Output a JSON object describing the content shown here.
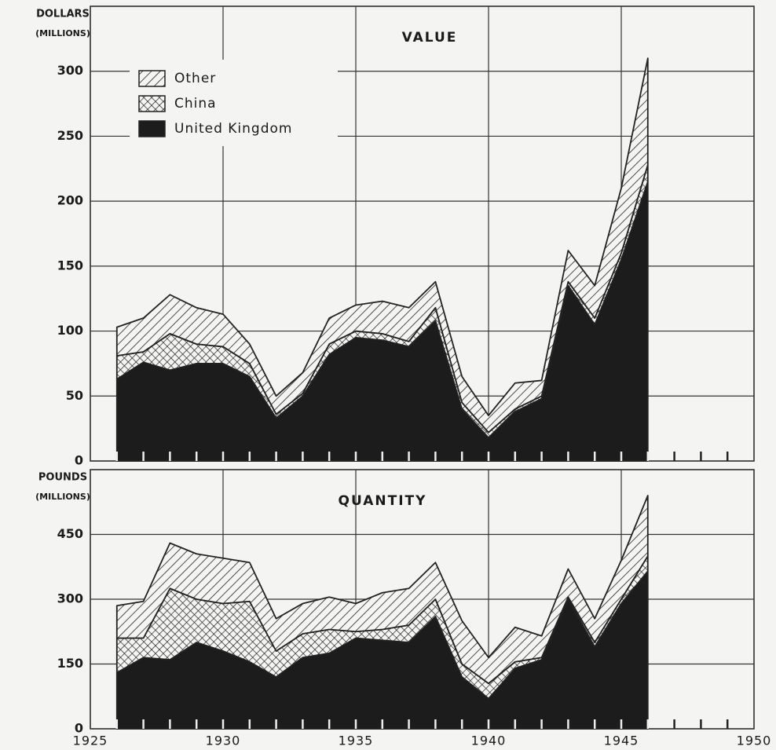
{
  "chart_data": [
    {
      "type": "stacked_area",
      "title": "VALUE",
      "ylabel": [
        "DOLLARS",
        "(MILLIONS)"
      ],
      "x": [
        1926,
        1927,
        1928,
        1929,
        1930,
        1931,
        1932,
        1933,
        1934,
        1935,
        1936,
        1937,
        1938,
        1939,
        1940,
        1941,
        1942,
        1943,
        1944,
        1945,
        1946
      ],
      "series": [
        {
          "name": "United Kingdom",
          "color": "#1c1c1c",
          "pattern": "solid",
          "values": [
            63,
            76,
            70,
            75,
            75,
            65,
            33,
            50,
            82,
            95,
            93,
            88,
            108,
            40,
            18,
            38,
            48,
            135,
            105,
            155,
            215
          ]
        },
        {
          "name": "China",
          "color": "#1c1c1c",
          "pattern": "crosshatch",
          "values": [
            18,
            8,
            28,
            15,
            13,
            10,
            3,
            2,
            8,
            5,
            5,
            4,
            10,
            5,
            4,
            2,
            2,
            3,
            5,
            5,
            13
          ]
        },
        {
          "name": "Other",
          "color": "#1c1c1c",
          "pattern": "hatch",
          "values": [
            22,
            26,
            30,
            28,
            25,
            15,
            14,
            16,
            20,
            20,
            25,
            26,
            20,
            20,
            13,
            20,
            12,
            24,
            25,
            50,
            82
          ]
        }
      ],
      "xlim": [
        1925,
        1950
      ],
      "xticks": [
        1925,
        1930,
        1935,
        1940,
        1945,
        1950
      ],
      "ylim": [
        0,
        350
      ],
      "yticks": [
        0,
        50,
        100,
        150,
        200,
        250,
        300
      ],
      "grid": true,
      "legend": "upper left"
    },
    {
      "type": "stacked_area",
      "title": "QUANTITY",
      "ylabel": [
        "POUNDS",
        "(MILLIONS)"
      ],
      "x": [
        1926,
        1927,
        1928,
        1929,
        1930,
        1931,
        1932,
        1933,
        1934,
        1935,
        1936,
        1937,
        1938,
        1939,
        1940,
        1941,
        1942,
        1943,
        1944,
        1945,
        1946
      ],
      "series": [
        {
          "color": "#1c1c1c",
          "pattern": "solid",
          "values": [
            130,
            165,
            160,
            200,
            180,
            155,
            120,
            165,
            175,
            210,
            205,
            200,
            260,
            120,
            70,
            140,
            160,
            300,
            190,
            290,
            365
          ]
        },
        {
          "color": "#1c1c1c",
          "pattern": "crosshatch",
          "values": [
            80,
            45,
            165,
            100,
            110,
            140,
            60,
            55,
            55,
            15,
            25,
            40,
            40,
            30,
            35,
            15,
            5,
            5,
            10,
            10,
            35
          ]
        },
        {
          "color": "#1c1c1c",
          "pattern": "hatch",
          "values": [
            75,
            85,
            105,
            105,
            105,
            90,
            75,
            70,
            75,
            65,
            85,
            85,
            85,
            100,
            60,
            80,
            50,
            65,
            55,
            90,
            140
          ]
        }
      ],
      "xlim": [
        1925,
        1950
      ],
      "xticks": [
        1925,
        1930,
        1935,
        1940,
        1945,
        1950
      ],
      "ylim": [
        0,
        600
      ],
      "yticks": [
        0,
        150,
        300,
        450
      ],
      "grid": true
    }
  ]
}
